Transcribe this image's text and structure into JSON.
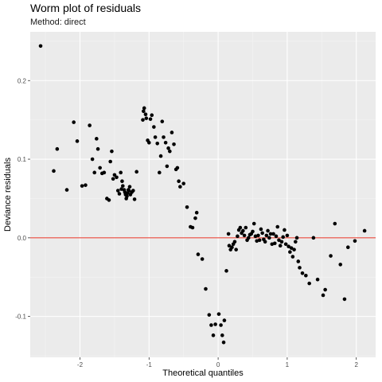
{
  "chart_data": {
    "type": "scatter",
    "title": "Worm plot of residuals",
    "subtitle": "Method: direct",
    "xlabel": "Theoretical quantiles",
    "ylabel": "Deviance residuals",
    "xlim": [
      -2.72,
      2.28
    ],
    "ylim": [
      -0.152,
      0.262
    ],
    "xticks": [
      -2,
      -1,
      0,
      1,
      2
    ],
    "yticks": [
      -0.1,
      0.0,
      0.1,
      0.2
    ],
    "xtick_labels": [
      "-2",
      "-1",
      "0",
      "1",
      "2"
    ],
    "ytick_labels": [
      "-0.1",
      "0.0",
      "0.1",
      "0.2"
    ],
    "grid": true,
    "reference_line": {
      "y": 0.0,
      "color": "#e8463a"
    },
    "point_color": "#000000",
    "panel_color": "#ebebeb",
    "points": [
      [
        -2.57,
        0.244
      ],
      [
        -2.38,
        0.085
      ],
      [
        -2.33,
        0.113
      ],
      [
        -2.19,
        0.061
      ],
      [
        -2.09,
        0.147
      ],
      [
        -2.04,
        0.123
      ],
      [
        -1.97,
        0.066
      ],
      [
        -1.92,
        0.067
      ],
      [
        -1.86,
        0.143
      ],
      [
        -1.82,
        0.1
      ],
      [
        -1.79,
        0.083
      ],
      [
        -1.76,
        0.126
      ],
      [
        -1.74,
        0.113
      ],
      [
        -1.71,
        0.089
      ],
      [
        -1.68,
        0.082
      ],
      [
        -1.65,
        0.083
      ],
      [
        -1.61,
        0.05
      ],
      [
        -1.58,
        0.048
      ],
      [
        -1.56,
        0.097
      ],
      [
        -1.54,
        0.11
      ],
      [
        -1.52,
        0.075
      ],
      [
        -1.5,
        0.08
      ],
      [
        -1.47,
        0.077
      ],
      [
        -1.45,
        0.06
      ],
      [
        -1.43,
        0.056
      ],
      [
        -1.41,
        0.083
      ],
      [
        -1.4,
        0.062
      ],
      [
        -1.39,
        0.072
      ],
      [
        -1.38,
        0.066
      ],
      [
        -1.36,
        0.061
      ],
      [
        -1.35,
        0.058
      ],
      [
        -1.34,
        0.055
      ],
      [
        -1.33,
        0.05
      ],
      [
        -1.32,
        0.053
      ],
      [
        -1.31,
        0.057
      ],
      [
        -1.3,
        0.061
      ],
      [
        -1.29,
        0.06
      ],
      [
        -1.28,
        0.065
      ],
      [
        -1.27,
        0.055
      ],
      [
        -1.25,
        0.058
      ],
      [
        -1.23,
        0.06
      ],
      [
        -1.21,
        0.049
      ],
      [
        -1.18,
        0.084
      ],
      [
        -1.09,
        0.15
      ],
      [
        -1.08,
        0.161
      ],
      [
        -1.07,
        0.165
      ],
      [
        -1.05,
        0.157
      ],
      [
        -1.04,
        0.152
      ],
      [
        -1.02,
        0.124
      ],
      [
        -1.0,
        0.121
      ],
      [
        -0.98,
        0.151
      ],
      [
        -0.96,
        0.156
      ],
      [
        -0.93,
        0.141
      ],
      [
        -0.91,
        0.128
      ],
      [
        -0.88,
        0.12
      ],
      [
        -0.85,
        0.083
      ],
      [
        -0.83,
        0.104
      ],
      [
        -0.81,
        0.148
      ],
      [
        -0.79,
        0.128
      ],
      [
        -0.76,
        0.121
      ],
      [
        -0.74,
        0.091
      ],
      [
        -0.72,
        0.114
      ],
      [
        -0.7,
        0.11
      ],
      [
        -0.67,
        0.134
      ],
      [
        -0.64,
        0.119
      ],
      [
        -0.61,
        0.087
      ],
      [
        -0.59,
        0.089
      ],
      [
        -0.57,
        0.072
      ],
      [
        -0.55,
        0.065
      ],
      [
        -0.5,
        0.069
      ],
      [
        -0.45,
        0.039
      ],
      [
        -0.4,
        0.014
      ],
      [
        -0.37,
        0.013
      ],
      [
        -0.33,
        0.025
      ],
      [
        -0.31,
        0.032
      ],
      [
        -0.29,
        -0.021
      ],
      [
        -0.23,
        -0.027
      ],
      [
        -0.18,
        -0.065
      ],
      [
        -0.13,
        -0.098
      ],
      [
        -0.1,
        -0.111
      ],
      [
        -0.07,
        -0.124
      ],
      [
        -0.04,
        -0.11
      ],
      [
        0.01,
        -0.097
      ],
      [
        0.04,
        -0.111
      ],
      [
        0.06,
        -0.124
      ],
      [
        0.08,
        -0.133
      ],
      [
        0.09,
        -0.105
      ],
      [
        0.12,
        -0.042
      ],
      [
        0.15,
        0.005
      ],
      [
        0.16,
        -0.01
      ],
      [
        0.18,
        -0.015
      ],
      [
        0.2,
        -0.012
      ],
      [
        0.22,
        -0.008
      ],
      [
        0.24,
        -0.005
      ],
      [
        0.26,
        -0.015
      ],
      [
        0.28,
        0.002
      ],
      [
        0.3,
        0.01
      ],
      [
        0.32,
        0.013
      ],
      [
        0.34,
        0.006
      ],
      [
        0.36,
        0.009
      ],
      [
        0.38,
        0.003
      ],
      [
        0.4,
        0.013
      ],
      [
        0.42,
        -0.003
      ],
      [
        0.44,
        0.0
      ],
      [
        0.46,
        0.004
      ],
      [
        0.48,
        0.005
      ],
      [
        0.5,
        0.008
      ],
      [
        0.52,
        0.018
      ],
      [
        0.54,
        0.002
      ],
      [
        0.56,
        -0.004
      ],
      [
        0.58,
        0.003
      ],
      [
        0.6,
        -0.003
      ],
      [
        0.62,
        0.011
      ],
      [
        0.64,
        0.006
      ],
      [
        0.66,
        -0.002
      ],
      [
        0.68,
        -0.005
      ],
      [
        0.7,
        0.003
      ],
      [
        0.72,
        0.009
      ],
      [
        0.74,
        0.0
      ],
      [
        0.76,
        0.005
      ],
      [
        0.78,
        -0.008
      ],
      [
        0.8,
        0.005
      ],
      [
        0.82,
        -0.007
      ],
      [
        0.84,
        0.002
      ],
      [
        0.86,
        0.014
      ],
      [
        0.88,
        -0.003
      ],
      [
        0.9,
        -0.01
      ],
      [
        0.92,
        -0.005
      ],
      [
        0.94,
        0.001
      ],
      [
        0.96,
        0.01
      ],
      [
        0.98,
        -0.008
      ],
      [
        1.0,
        0.003
      ],
      [
        1.02,
        -0.011
      ],
      [
        1.04,
        -0.018
      ],
      [
        1.06,
        -0.013
      ],
      [
        1.08,
        -0.024
      ],
      [
        1.1,
        -0.015
      ],
      [
        1.12,
        -0.005
      ],
      [
        1.14,
        0.0
      ],
      [
        1.16,
        -0.03
      ],
      [
        1.18,
        -0.038
      ],
      [
        1.22,
        -0.045
      ],
      [
        1.27,
        -0.048
      ],
      [
        1.32,
        -0.058
      ],
      [
        1.38,
        0.0
      ],
      [
        1.44,
        -0.053
      ],
      [
        1.52,
        -0.073
      ],
      [
        1.55,
        -0.066
      ],
      [
        1.63,
        -0.023
      ],
      [
        1.69,
        0.018
      ],
      [
        1.77,
        -0.034
      ],
      [
        1.83,
        -0.078
      ],
      [
        1.88,
        -0.012
      ],
      [
        1.98,
        -0.004
      ],
      [
        2.12,
        0.009
      ]
    ]
  }
}
